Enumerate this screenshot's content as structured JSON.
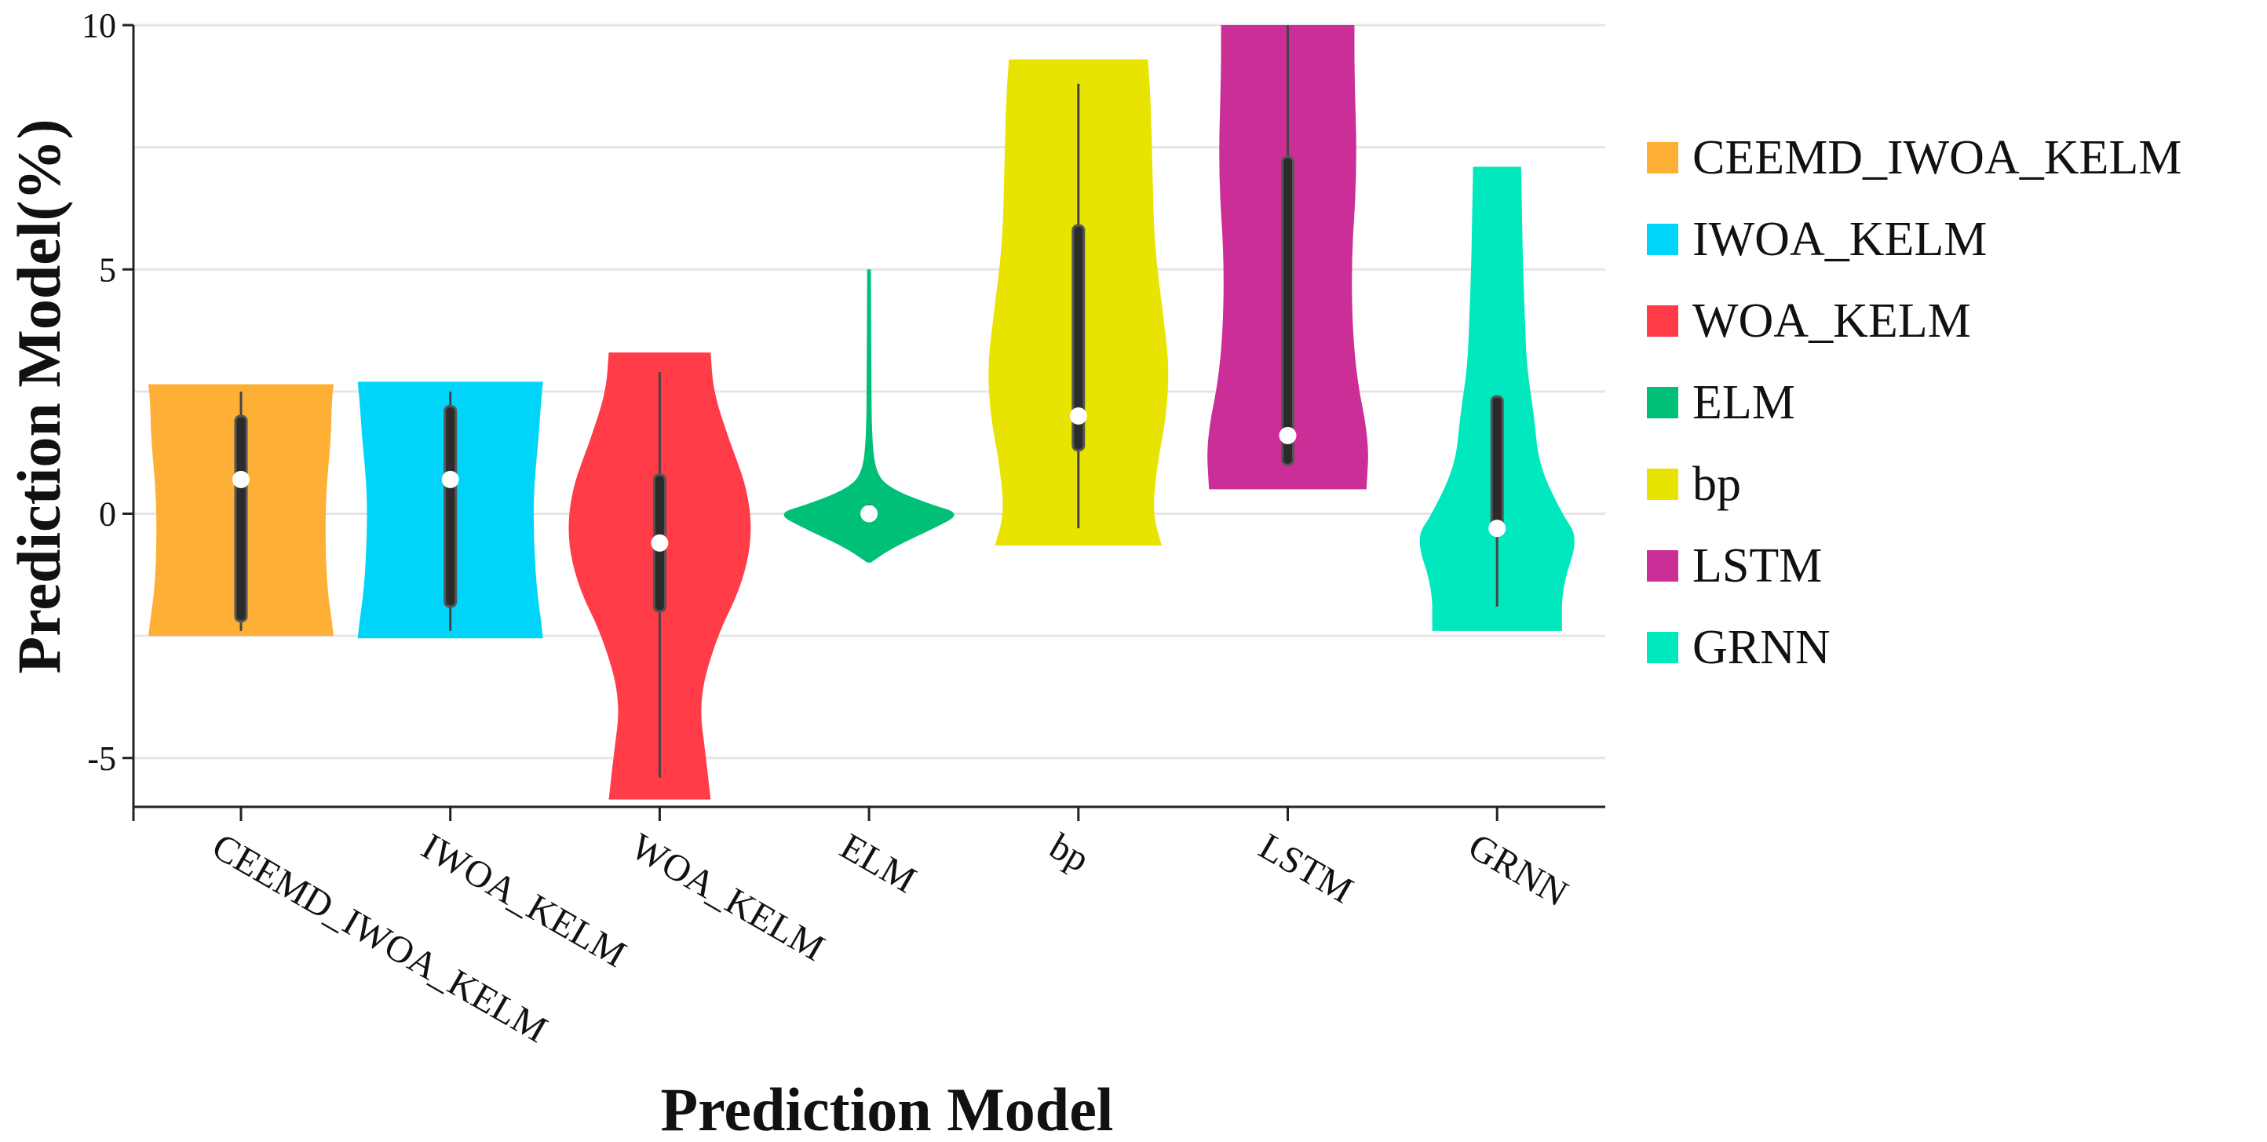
{
  "chart_data": {
    "type": "violin",
    "title": "",
    "xlabel": "Prediction Model",
    "ylabel": "Prediction Model(%)",
    "ylim": [
      -6,
      10
    ],
    "yticks": [
      -5,
      0,
      5,
      10
    ],
    "ytick_labels": [
      "-5",
      "0",
      "5",
      "10"
    ],
    "grid": "horizontal",
    "legend_position": "right",
    "categories": [
      "CEEMD_IWOA_KELM",
      "IWOA_KELM",
      "WOA_KELM",
      "ELM",
      "bp",
      "LSTM",
      "GRNN"
    ],
    "series": [
      {
        "name": "CEEMD_IWOA_KELM",
        "color": "#FDB035",
        "median": 0.7,
        "q1": -2.2,
        "q3": 2.0,
        "whisker_low": -2.4,
        "whisker_high": 2.5,
        "profile": [
          [
            -2.5,
            1.0
          ],
          [
            -2.2,
            0.98
          ],
          [
            -1.5,
            0.93
          ],
          [
            -0.5,
            0.91
          ],
          [
            0.5,
            0.92
          ],
          [
            1.5,
            0.97
          ],
          [
            2.3,
            0.98
          ],
          [
            2.65,
            1.0
          ]
        ]
      },
      {
        "name": "IWOA_KELM",
        "color": "#00D5F9",
        "median": 0.7,
        "q1": -1.9,
        "q3": 2.2,
        "whisker_low": -2.4,
        "whisker_high": 2.5,
        "profile": [
          [
            -2.55,
            1.0
          ],
          [
            -2.2,
            0.98
          ],
          [
            -1.5,
            0.93
          ],
          [
            -0.5,
            0.9
          ],
          [
            0.5,
            0.9
          ],
          [
            1.5,
            0.95
          ],
          [
            2.3,
            0.98
          ],
          [
            2.7,
            1.0
          ]
        ]
      },
      {
        "name": "WOA_KELM",
        "color": "#FF3C48",
        "median": -0.6,
        "q1": -2.0,
        "q3": 0.8,
        "whisker_low": -5.4,
        "whisker_high": 2.9,
        "profile": [
          [
            -5.85,
            0.55
          ],
          [
            -5.0,
            0.5
          ],
          [
            -3.8,
            0.42
          ],
          [
            -2.5,
            0.62
          ],
          [
            -1.5,
            0.88
          ],
          [
            -0.5,
            1.0
          ],
          [
            0.5,
            0.95
          ],
          [
            1.5,
            0.75
          ],
          [
            2.5,
            0.58
          ],
          [
            3.3,
            0.55
          ]
        ]
      },
      {
        "name": "ELM",
        "color": "#00C078",
        "median": 0.0,
        "q1": -0.05,
        "q3": 0.05,
        "whisker_low": -0.1,
        "whisker_high": 0.2,
        "profile": [
          [
            -1.0,
            0.02
          ],
          [
            -0.7,
            0.25
          ],
          [
            -0.3,
            0.7
          ],
          [
            0.0,
            1.0
          ],
          [
            0.2,
            0.65
          ],
          [
            0.5,
            0.25
          ],
          [
            0.8,
            0.08
          ],
          [
            1.5,
            0.03
          ],
          [
            3.0,
            0.025
          ],
          [
            5.0,
            0.02
          ]
        ]
      },
      {
        "name": "bp",
        "color": "#E8E300",
        "median": 2.0,
        "q1": 1.3,
        "q3": 5.9,
        "whisker_low": -0.3,
        "whisker_high": 8.8,
        "profile": [
          [
            -0.65,
            0.9
          ],
          [
            0.0,
            0.8
          ],
          [
            1.0,
            0.85
          ],
          [
            2.0,
            0.95
          ],
          [
            3.0,
            0.98
          ],
          [
            4.0,
            0.92
          ],
          [
            5.5,
            0.82
          ],
          [
            7.0,
            0.8
          ],
          [
            8.5,
            0.78
          ],
          [
            9.3,
            0.75
          ]
        ]
      },
      {
        "name": "LSTM",
        "color": "#CC2E98",
        "median": 1.6,
        "q1": 1.0,
        "q3": 7.3,
        "whisker_low": 1.0,
        "whisker_high": 10.0,
        "profile": [
          [
            0.5,
            0.85
          ],
          [
            1.5,
            0.88
          ],
          [
            3.0,
            0.72
          ],
          [
            5.0,
            0.68
          ],
          [
            7.0,
            0.75
          ],
          [
            9.0,
            0.72
          ],
          [
            10.0,
            0.72
          ]
        ]
      },
      {
        "name": "GRNN",
        "color": "#00E8BE",
        "median": -0.3,
        "q1": -0.3,
        "q3": 2.4,
        "whisker_low": -1.9,
        "whisker_high": 2.4,
        "profile": [
          [
            -2.4,
            0.7
          ],
          [
            -1.5,
            0.7
          ],
          [
            -0.5,
            0.88
          ],
          [
            0.0,
            0.7
          ],
          [
            1.0,
            0.45
          ],
          [
            2.0,
            0.4
          ],
          [
            3.0,
            0.32
          ],
          [
            4.0,
            0.3
          ],
          [
            5.0,
            0.28
          ],
          [
            6.0,
            0.27
          ],
          [
            7.1,
            0.26
          ]
        ]
      }
    ]
  }
}
